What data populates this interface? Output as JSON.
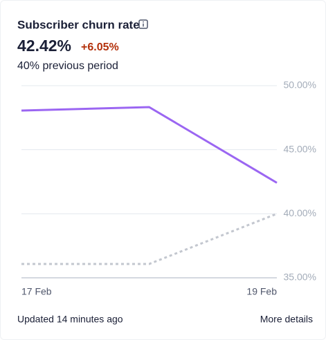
{
  "chart_data": {
    "type": "line",
    "title": "Subscriber churn rate",
    "headline": "42.42%",
    "change": "+6.05%",
    "comparison": "40% previous period",
    "categories": [
      "17 Feb",
      null,
      "19 Feb"
    ],
    "series": [
      {
        "color": "#9b66f2",
        "dashed": false,
        "values": [
          48.06,
          48.33,
          42.42
        ]
      },
      {
        "color": "#c3c7cf",
        "dashed": true,
        "values": [
          36.08,
          36.08,
          40.0
        ]
      }
    ],
    "ylim": [
      35,
      50
    ],
    "yticks": [
      {
        "value": 50,
        "label": "50.00%"
      },
      {
        "value": 45,
        "label": "45.00%"
      },
      {
        "value": 40,
        "label": "40.00%"
      },
      {
        "value": 35,
        "label": "35.00%"
      }
    ],
    "grid": true,
    "footer": "Updated 14 minutes ago",
    "link": "More details"
  }
}
